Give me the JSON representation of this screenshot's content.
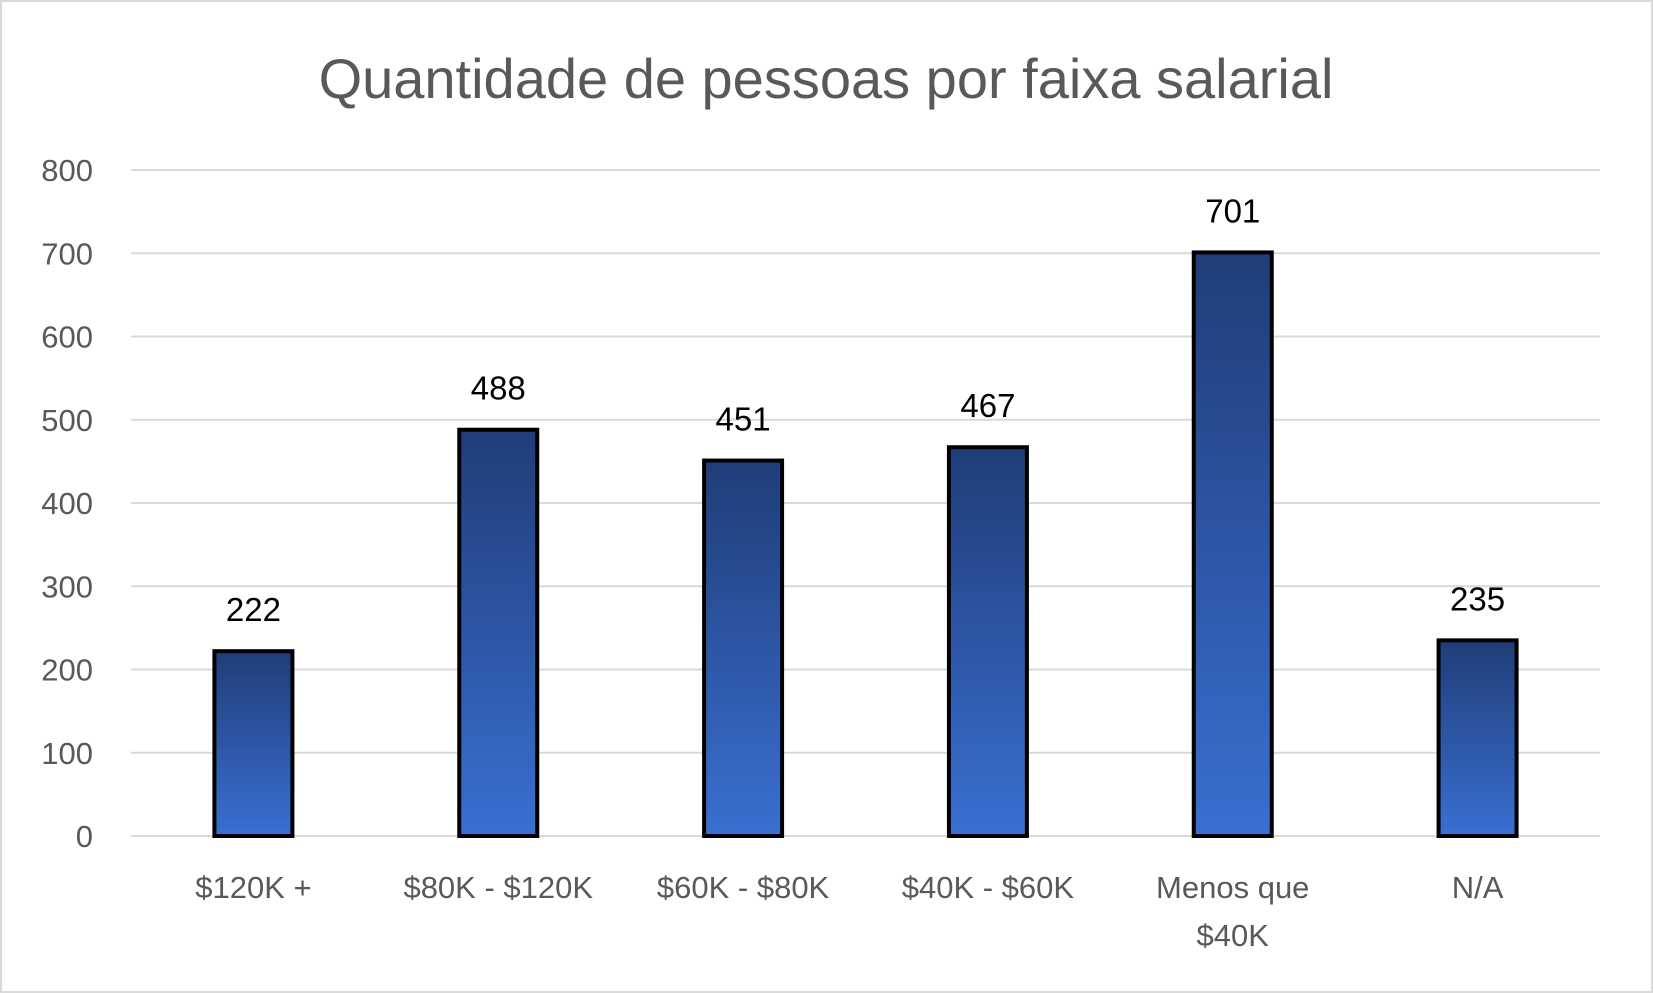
{
  "chart_data": {
    "type": "bar",
    "title": "Quantidade de pessoas por faixa salarial",
    "xlabel": "",
    "ylabel": "",
    "categories": [
      [
        "$120K +"
      ],
      [
        "$80K - $120K"
      ],
      [
        "$60K - $80K"
      ],
      [
        "$40K - $60K"
      ],
      [
        "Menos que",
        "$40K"
      ],
      [
        "N/A"
      ]
    ],
    "values": [
      222,
      488,
      451,
      467,
      701,
      235
    ],
    "data_labels": [
      "222",
      "488",
      "451",
      "467",
      "701",
      "235"
    ],
    "ylim": [
      0,
      800
    ],
    "yticks": [
      0,
      100,
      200,
      300,
      400,
      500,
      600,
      700,
      800
    ],
    "ytick_labels": [
      "0",
      "100",
      "200",
      "300",
      "400",
      "500",
      "600",
      "700",
      "800"
    ],
    "grid": true,
    "legend": "none",
    "colors": {
      "bar_top": "#1f3d78",
      "bar_bottom": "#3a6fd1",
      "bar_outline": "#000000",
      "grid": "#d9d9d9",
      "text": "#595959"
    }
  }
}
